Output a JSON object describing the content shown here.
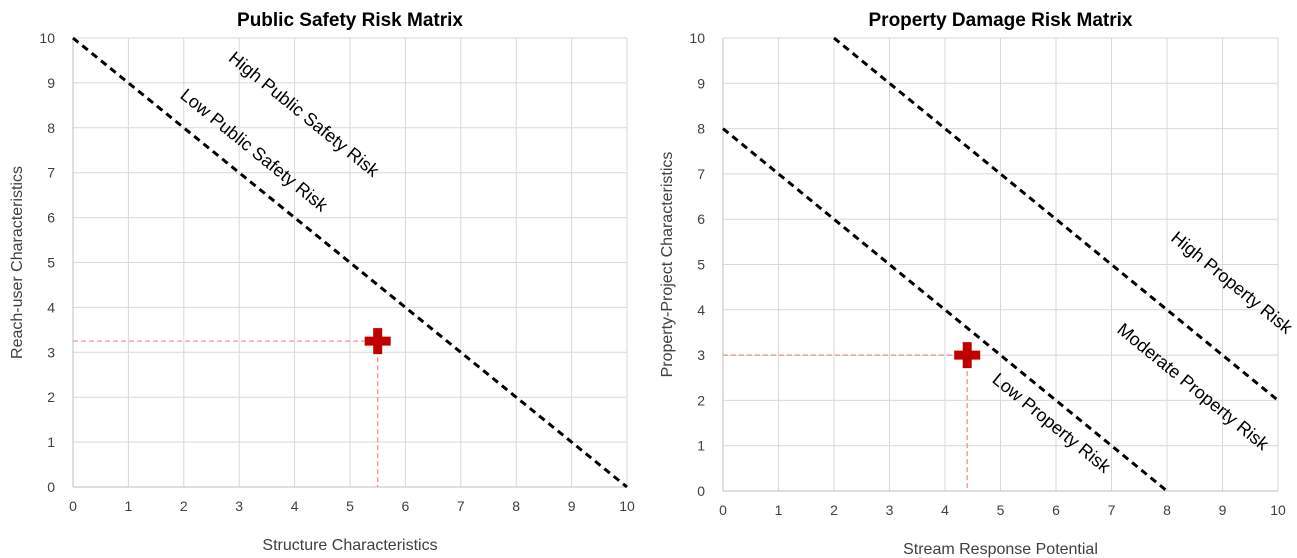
{
  "chart_data": [
    {
      "type": "line",
      "title": "Public Safety Risk Matrix",
      "xlabel": "Structure Characteristics",
      "ylabel": "Reach-user Characteristics",
      "xlim": [
        0,
        10
      ],
      "ylim": [
        0,
        10
      ],
      "xticks": [
        "0",
        "1",
        "2",
        "3",
        "4",
        "5",
        "6",
        "7",
        "8",
        "9",
        "10"
      ],
      "yticks": [
        "0",
        "1",
        "2",
        "3",
        "4",
        "5",
        "6",
        "7",
        "8",
        "9",
        "10"
      ],
      "grid": true,
      "boundaries": [
        {
          "x": [
            0,
            10
          ],
          "y": [
            10,
            0
          ]
        }
      ],
      "regions": [
        {
          "label": "High Public Safety Risk",
          "x": 4.1,
          "y": 8.2
        },
        {
          "label": "Low Public Safety Risk",
          "x": 3.2,
          "y": 7.4
        }
      ],
      "point": {
        "x": 5.5,
        "y": 3.25,
        "marker_color": "#c00000"
      },
      "guide_color": "#ff8080"
    },
    {
      "type": "line",
      "title": "Property Damage Risk Matrix",
      "xlabel": "Stream Response Potential",
      "ylabel": "Property-Project Characteristics",
      "xlim": [
        0,
        10
      ],
      "ylim": [
        0,
        10
      ],
      "xticks": [
        "0",
        "1",
        "2",
        "3",
        "4",
        "5",
        "6",
        "7",
        "8",
        "9",
        "10"
      ],
      "yticks": [
        "0",
        "1",
        "2",
        "3",
        "4",
        "5",
        "6",
        "7",
        "8",
        "9",
        "10"
      ],
      "grid": true,
      "boundaries": [
        {
          "x": [
            0,
            8
          ],
          "y": [
            8,
            0
          ]
        },
        {
          "x": [
            2,
            10
          ],
          "y": [
            10,
            2
          ]
        }
      ],
      "regions": [
        {
          "label": "High Property Risk",
          "x": 9.1,
          "y": 4.5
        },
        {
          "label": "Moderate Property Risk",
          "x": 8.4,
          "y": 2.2
        },
        {
          "label": "Low Property Risk",
          "x": 5.85,
          "y": 1.4
        }
      ],
      "point": {
        "x": 4.4,
        "y": 3.0,
        "marker_color": "#c00000"
      },
      "guide_color": "#ff8080"
    }
  ]
}
